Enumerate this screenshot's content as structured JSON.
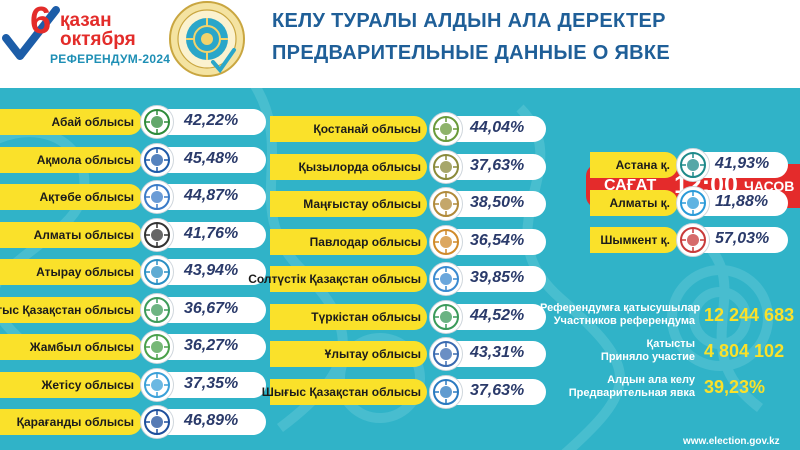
{
  "header": {
    "date_day": "6",
    "date_month_kz": "қазан",
    "date_month_ru": "октября",
    "date_sub": "РЕФЕРЕНДУМ-2024",
    "title_kz": "КЕЛУ ТУРАЛЫ АЛДЫН АЛА ДЕРЕКТЕР",
    "title_ru": "ПРЕДВАРИТЕЛЬНЫЕ ДАННЫЕ О ЯВКЕ"
  },
  "time": {
    "label": "САҒАТ",
    "value": "12:00",
    "unit": "ЧАСОВ"
  },
  "regions_col1": [
    {
      "name": "Абай облысы",
      "value": "42,22%",
      "logo": "abai-emblem",
      "logo_color": "#2e8b3a"
    },
    {
      "name": "Ақмола облысы",
      "value": "45,48%",
      "logo": "akmola-emblem",
      "logo_color": "#1e5aa8"
    },
    {
      "name": "Ақтөбе облысы",
      "value": "44,87%",
      "logo": "aktobe-emblem",
      "logo_color": "#3a7bc8"
    },
    {
      "name": "Алматы облысы",
      "value": "41,76%",
      "logo": "almaty-region-emblem",
      "logo_color": "#333333"
    },
    {
      "name": "Атырау облысы",
      "value": "43,94%",
      "logo": "atyrau-emblem",
      "logo_color": "#2a8fc4"
    },
    {
      "name": "Батыс Қазақстан облысы",
      "value": "36,67%",
      "logo": "west-kz-emblem",
      "logo_color": "#3d9b5a"
    },
    {
      "name": "Жамбыл облысы",
      "value": "36,27%",
      "logo": "zhambyl-emblem",
      "logo_color": "#4aa04a"
    },
    {
      "name": "Жетісу облысы",
      "value": "37,35%",
      "logo": "zhetisu-emblem",
      "logo_color": "#3aa0d8"
    },
    {
      "name": "Қарағанды облысы",
      "value": "46,89%",
      "logo": "karaganda-emblem",
      "logo_color": "#1e4f9c"
    }
  ],
  "regions_col2": [
    {
      "name": "Қостанай облысы",
      "value": "44,04%",
      "logo": "kostanay-emblem",
      "logo_color": "#6a9a3a"
    },
    {
      "name": "Қызылорда облысы",
      "value": "37,63%",
      "logo": "kyzylorda-emblem",
      "logo_color": "#8a8a3a"
    },
    {
      "name": "Маңғыстау облысы",
      "value": "38,50%",
      "logo": "mangystau-emblem",
      "logo_color": "#b08a3a"
    },
    {
      "name": "Павлодар облысы",
      "value": "36,54%",
      "logo": "pavlodar-emblem",
      "logo_color": "#d08a2a"
    },
    {
      "name": "Солтүстік Қазақстан облысы",
      "value": "39,85%",
      "logo": "north-kz-emblem",
      "logo_color": "#3a8ad0"
    },
    {
      "name": "Түркістан облысы",
      "value": "44,52%",
      "logo": "turkistan-emblem",
      "logo_color": "#3a9a5a"
    },
    {
      "name": "Ұлытау облысы",
      "value": "43,31%",
      "logo": "ulytau-emblem",
      "logo_color": "#3a6ab0"
    },
    {
      "name": "Шығыс Қазақстан облысы",
      "value": "37,63%",
      "logo": "east-kz-emblem",
      "logo_color": "#2a7ac0"
    }
  ],
  "cities": [
    {
      "name": "Астана қ.",
      "value": "41,93%",
      "logo": "astana-emblem",
      "logo_color": "#1e8a8a"
    },
    {
      "name": "Алматы қ.",
      "value": "11,88%",
      "logo": "almaty-city-emblem",
      "logo_color": "#2a9ad8"
    },
    {
      "name": "Шымкент қ.",
      "value": "57,03%",
      "logo": "shymkent-emblem",
      "logo_color": "#c83a3a"
    }
  ],
  "stats": {
    "participants_kz": "Референдумға қатысушылар",
    "participants_ru": "Участников референдума",
    "participants_value": "12 244 683",
    "voted_kz": "Қатысты",
    "voted_ru": "Приняло участие",
    "voted_value": "4 804 102",
    "turnout_kz": "Алдын ала келу",
    "turnout_ru": "Предварительная явка",
    "turnout_value": "39,23%"
  },
  "website": "www.election.gov.kz",
  "colors": {
    "panel": "#30b3c8",
    "bar": "#fae12a",
    "accent_red": "#e42b2b",
    "title_blue": "#1f5f98",
    "value_text": "#2a3a6a"
  }
}
